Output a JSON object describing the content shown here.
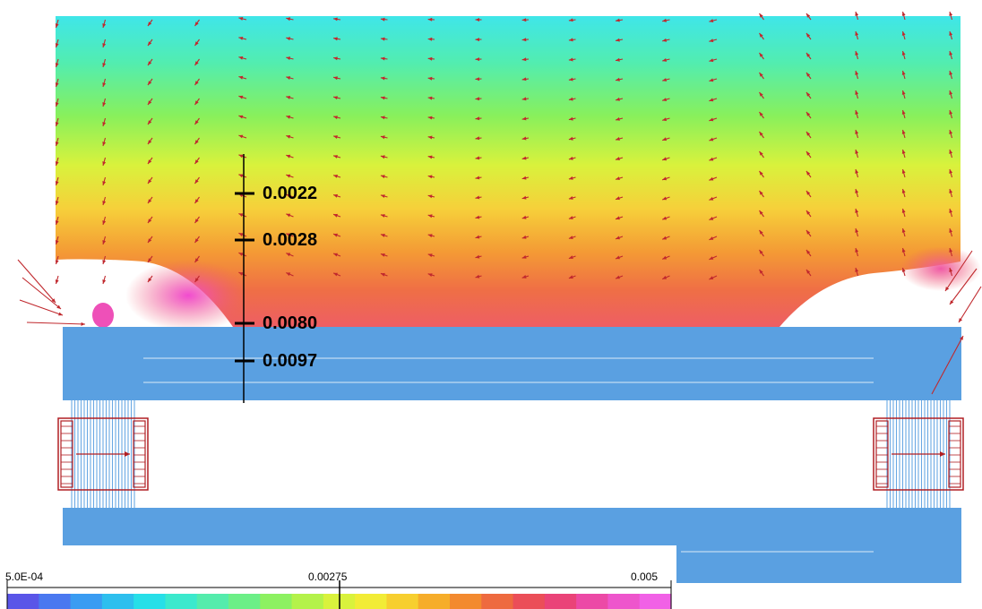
{
  "figure": {
    "probe_readings": [
      "0.0022",
      "0.0028",
      "0.0080",
      "0.0097"
    ],
    "colorbar": {
      "min_label": "5.0E-04",
      "mid_label": "0.00275",
      "max_label": "0.005",
      "min": 0.0005,
      "max": 0.005,
      "colors": [
        "#5a55e8",
        "#4a78f0",
        "#3a9cf2",
        "#2ebfee",
        "#27dfe8",
        "#3be9cd",
        "#54ecac",
        "#6cef87",
        "#8df161",
        "#b4f24a",
        "#d9f23c",
        "#f2ec36",
        "#f7cf2f",
        "#f6ad2a",
        "#f38a2f",
        "#ee6a3f",
        "#eb4e58",
        "#ea4378",
        "#ec49a6",
        "#ee55cc",
        "#f161e6"
      ]
    },
    "colors": {
      "iron": "#5aa0e1",
      "arrow": "#c0282d",
      "coil": "#b01e23"
    }
  }
}
